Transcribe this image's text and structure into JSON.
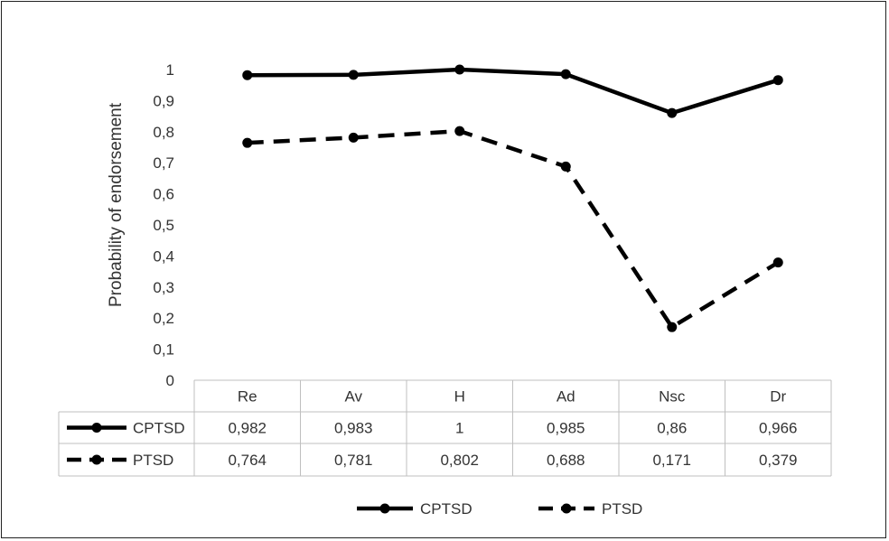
{
  "chart_data": {
    "type": "line",
    "ylabel": "Probability of endorsement",
    "ylim": [
      0,
      1
    ],
    "yticks": [
      "0",
      "0,1",
      "0,2",
      "0,3",
      "0,4",
      "0,5",
      "0,6",
      "0,7",
      "0,8",
      "0,9",
      "1"
    ],
    "categories": [
      "Re",
      "Av",
      "H",
      "Ad",
      "Nsc",
      "Dr"
    ],
    "series": [
      {
        "name": "CPTSD",
        "style": "solid",
        "values": [
          0.982,
          0.983,
          1,
          0.985,
          0.86,
          0.966
        ],
        "labels": [
          "0,982",
          "0,983",
          "1",
          "0,985",
          "0,86",
          "0,966"
        ]
      },
      {
        "name": "PTSD",
        "style": "dashed",
        "values": [
          0.764,
          0.781,
          0.802,
          0.688,
          0.171,
          0.379
        ],
        "labels": [
          "0,764",
          "0,781",
          "0,802",
          "0,688",
          "0,171",
          "0,379"
        ]
      }
    ],
    "legend_position": "bottom",
    "data_table": true,
    "colors": {
      "line": "#000000",
      "grid": "#bfbfbf",
      "text": "#333333"
    }
  }
}
